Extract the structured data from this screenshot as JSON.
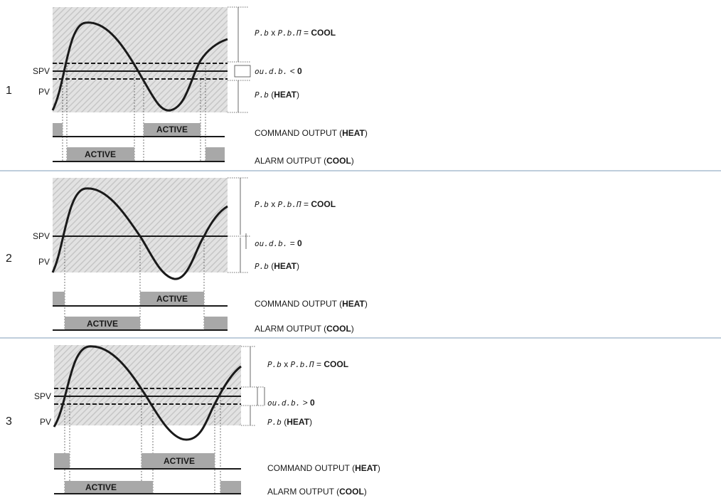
{
  "labels": {
    "spv": "SPV",
    "pv": "PV",
    "active": "ACTIVE",
    "eq": " = ",
    "times": " x ",
    "cool": "COOL",
    "heat": "HEAT",
    "open_paren": " (",
    "close_paren": ")",
    "pb": "P.b",
    "pbm": "P.b.Π",
    "oudb": "ou.d.b.",
    "command_output": "COMMAND OUTPUT (",
    "alarm_output": "ALARM OUTPUT ("
  },
  "panels": [
    {
      "number": "1",
      "db_op": " < ",
      "db_val": "0"
    },
    {
      "number": "2",
      "db_op": " = ",
      "db_val": "0"
    },
    {
      "number": "3",
      "db_op": " > ",
      "db_val": "0"
    }
  ],
  "colors": {
    "hatch_bg": "#e2e2e2",
    "hatch_line": "#c4c4c4",
    "active_fill": "#a8a8a8",
    "separator": "#7f9cb8",
    "ink": "#1a1a1a"
  }
}
